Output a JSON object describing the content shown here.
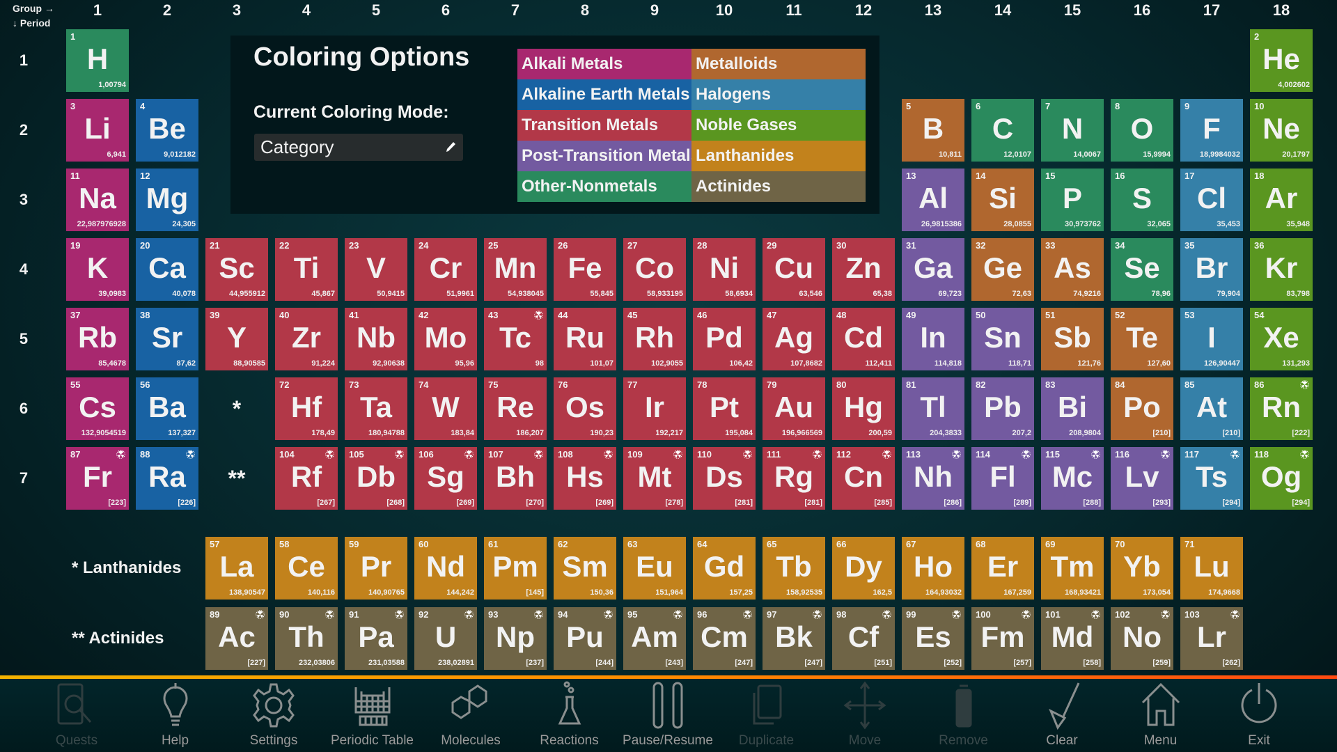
{
  "header": {
    "group_label": "Group →",
    "period_label": "↓ Period"
  },
  "groups": [
    "1",
    "2",
    "3",
    "4",
    "5",
    "6",
    "7",
    "8",
    "9",
    "10",
    "11",
    "12",
    "13",
    "14",
    "15",
    "16",
    "17",
    "18"
  ],
  "periods": [
    "1",
    "2",
    "3",
    "4",
    "5",
    "6",
    "7"
  ],
  "placeholders": {
    "lanthanide_marker": "*",
    "actinide_marker": "**"
  },
  "series_labels": {
    "lanthanides": "* Lanthanides",
    "actinides": "** Actinides"
  },
  "coloring_panel": {
    "title": "Coloring Options",
    "mode_label": "Current Coloring Mode:",
    "mode_value": "Category",
    "edit_icon": "pencil-icon",
    "legend": [
      {
        "key": "alkali",
        "label": "Alkali Metals",
        "color": "#a8286f"
      },
      {
        "key": "metalloid",
        "label": "Metalloids",
        "color": "#b0672f"
      },
      {
        "key": "alkaline",
        "label": "Alkaline Earth Metals",
        "color": "#1862a3"
      },
      {
        "key": "halogen",
        "label": "Halogens",
        "color": "#3580a8"
      },
      {
        "key": "transition",
        "label": "Transition Metals",
        "color": "#b23848"
      },
      {
        "key": "noble",
        "label": "Noble Gases",
        "color": "#5a9620"
      },
      {
        "key": "post",
        "label": "Post-Transition Metals",
        "color": "#735aa0"
      },
      {
        "key": "lanthanide",
        "label": "Lanthanides",
        "color": "#c2821c"
      },
      {
        "key": "nonmetal",
        "label": "Other-Nonmetals",
        "color": "#2a8a5d"
      },
      {
        "key": "actinide",
        "label": "Actinides",
        "color": "#6f6446"
      }
    ]
  },
  "radioactive_icon": "radiation-icon",
  "elements": [
    {
      "n": "1",
      "s": "H",
      "m": "1,00794",
      "c": "nonmetal",
      "g": 1,
      "p": 1
    },
    {
      "n": "2",
      "s": "He",
      "m": "4,002602",
      "c": "noble",
      "g": 18,
      "p": 1
    },
    {
      "n": "3",
      "s": "Li",
      "m": "6,941",
      "c": "alkali",
      "g": 1,
      "p": 2
    },
    {
      "n": "4",
      "s": "Be",
      "m": "9,012182",
      "c": "alkaline",
      "g": 2,
      "p": 2
    },
    {
      "n": "5",
      "s": "B",
      "m": "10,811",
      "c": "metalloid",
      "g": 13,
      "p": 2
    },
    {
      "n": "6",
      "s": "C",
      "m": "12,0107",
      "c": "nonmetal",
      "g": 14,
      "p": 2
    },
    {
      "n": "7",
      "s": "N",
      "m": "14,0067",
      "c": "nonmetal",
      "g": 15,
      "p": 2
    },
    {
      "n": "8",
      "s": "O",
      "m": "15,9994",
      "c": "nonmetal",
      "g": 16,
      "p": 2
    },
    {
      "n": "9",
      "s": "F",
      "m": "18,9984032",
      "c": "halogen",
      "g": 17,
      "p": 2
    },
    {
      "n": "10",
      "s": "Ne",
      "m": "20,1797",
      "c": "noble",
      "g": 18,
      "p": 2
    },
    {
      "n": "11",
      "s": "Na",
      "m": "22,987976928",
      "c": "alkali",
      "g": 1,
      "p": 3
    },
    {
      "n": "12",
      "s": "Mg",
      "m": "24,305",
      "c": "alkaline",
      "g": 2,
      "p": 3
    },
    {
      "n": "13",
      "s": "Al",
      "m": "26,9815386",
      "c": "post",
      "g": 13,
      "p": 3
    },
    {
      "n": "14",
      "s": "Si",
      "m": "28,0855",
      "c": "metalloid",
      "g": 14,
      "p": 3
    },
    {
      "n": "15",
      "s": "P",
      "m": "30,973762",
      "c": "nonmetal",
      "g": 15,
      "p": 3
    },
    {
      "n": "16",
      "s": "S",
      "m": "32,065",
      "c": "nonmetal",
      "g": 16,
      "p": 3
    },
    {
      "n": "17",
      "s": "Cl",
      "m": "35,453",
      "c": "halogen",
      "g": 17,
      "p": 3
    },
    {
      "n": "18",
      "s": "Ar",
      "m": "35,948",
      "c": "noble",
      "g": 18,
      "p": 3
    },
    {
      "n": "19",
      "s": "K",
      "m": "39,0983",
      "c": "alkali",
      "g": 1,
      "p": 4
    },
    {
      "n": "20",
      "s": "Ca",
      "m": "40,078",
      "c": "alkaline",
      "g": 2,
      "p": 4
    },
    {
      "n": "21",
      "s": "Sc",
      "m": "44,955912",
      "c": "transition",
      "g": 3,
      "p": 4
    },
    {
      "n": "22",
      "s": "Ti",
      "m": "45,867",
      "c": "transition",
      "g": 4,
      "p": 4
    },
    {
      "n": "23",
      "s": "V",
      "m": "50,9415",
      "c": "transition",
      "g": 5,
      "p": 4
    },
    {
      "n": "24",
      "s": "Cr",
      "m": "51,9961",
      "c": "transition",
      "g": 6,
      "p": 4
    },
    {
      "n": "25",
      "s": "Mn",
      "m": "54,938045",
      "c": "transition",
      "g": 7,
      "p": 4
    },
    {
      "n": "26",
      "s": "Fe",
      "m": "55,845",
      "c": "transition",
      "g": 8,
      "p": 4
    },
    {
      "n": "27",
      "s": "Co",
      "m": "58,933195",
      "c": "transition",
      "g": 9,
      "p": 4
    },
    {
      "n": "28",
      "s": "Ni",
      "m": "58,6934",
      "c": "transition",
      "g": 10,
      "p": 4
    },
    {
      "n": "29",
      "s": "Cu",
      "m": "63,546",
      "c": "transition",
      "g": 11,
      "p": 4
    },
    {
      "n": "30",
      "s": "Zn",
      "m": "65,38",
      "c": "transition",
      "g": 12,
      "p": 4
    },
    {
      "n": "31",
      "s": "Ga",
      "m": "69,723",
      "c": "post",
      "g": 13,
      "p": 4
    },
    {
      "n": "32",
      "s": "Ge",
      "m": "72,63",
      "c": "metalloid",
      "g": 14,
      "p": 4
    },
    {
      "n": "33",
      "s": "As",
      "m": "74,9216",
      "c": "metalloid",
      "g": 15,
      "p": 4
    },
    {
      "n": "34",
      "s": "Se",
      "m": "78,96",
      "c": "nonmetal",
      "g": 16,
      "p": 4
    },
    {
      "n": "35",
      "s": "Br",
      "m": "79,904",
      "c": "halogen",
      "g": 17,
      "p": 4
    },
    {
      "n": "36",
      "s": "Kr",
      "m": "83,798",
      "c": "noble",
      "g": 18,
      "p": 4
    },
    {
      "n": "37",
      "s": "Rb",
      "m": "85,4678",
      "c": "alkali",
      "g": 1,
      "p": 5
    },
    {
      "n": "38",
      "s": "Sr",
      "m": "87,62",
      "c": "alkaline",
      "g": 2,
      "p": 5
    },
    {
      "n": "39",
      "s": "Y",
      "m": "88,90585",
      "c": "transition",
      "g": 3,
      "p": 5
    },
    {
      "n": "40",
      "s": "Zr",
      "m": "91,224",
      "c": "transition",
      "g": 4,
      "p": 5
    },
    {
      "n": "41",
      "s": "Nb",
      "m": "92,90638",
      "c": "transition",
      "g": 5,
      "p": 5
    },
    {
      "n": "42",
      "s": "Mo",
      "m": "95,96",
      "c": "transition",
      "g": 6,
      "p": 5
    },
    {
      "n": "43",
      "s": "Tc",
      "m": "98",
      "c": "transition",
      "g": 7,
      "p": 5,
      "r": true
    },
    {
      "n": "44",
      "s": "Ru",
      "m": "101,07",
      "c": "transition",
      "g": 8,
      "p": 5
    },
    {
      "n": "45",
      "s": "Rh",
      "m": "102,9055",
      "c": "transition",
      "g": 9,
      "p": 5
    },
    {
      "n": "46",
      "s": "Pd",
      "m": "106,42",
      "c": "transition",
      "g": 10,
      "p": 5
    },
    {
      "n": "47",
      "s": "Ag",
      "m": "107,8682",
      "c": "transition",
      "g": 11,
      "p": 5
    },
    {
      "n": "48",
      "s": "Cd",
      "m": "112,411",
      "c": "transition",
      "g": 12,
      "p": 5
    },
    {
      "n": "49",
      "s": "In",
      "m": "114,818",
      "c": "post",
      "g": 13,
      "p": 5
    },
    {
      "n": "50",
      "s": "Sn",
      "m": "118,71",
      "c": "post",
      "g": 14,
      "p": 5
    },
    {
      "n": "51",
      "s": "Sb",
      "m": "121,76",
      "c": "metalloid",
      "g": 15,
      "p": 5
    },
    {
      "n": "52",
      "s": "Te",
      "m": "127,60",
      "c": "metalloid",
      "g": 16,
      "p": 5
    },
    {
      "n": "53",
      "s": "I",
      "m": "126,90447",
      "c": "halogen",
      "g": 17,
      "p": 5
    },
    {
      "n": "54",
      "s": "Xe",
      "m": "131,293",
      "c": "noble",
      "g": 18,
      "p": 5
    },
    {
      "n": "55",
      "s": "Cs",
      "m": "132,9054519",
      "c": "alkali",
      "g": 1,
      "p": 6
    },
    {
      "n": "56",
      "s": "Ba",
      "m": "137,327",
      "c": "alkaline",
      "g": 2,
      "p": 6
    },
    {
      "n": "72",
      "s": "Hf",
      "m": "178,49",
      "c": "transition",
      "g": 4,
      "p": 6
    },
    {
      "n": "73",
      "s": "Ta",
      "m": "180,94788",
      "c": "transition",
      "g": 5,
      "p": 6
    },
    {
      "n": "74",
      "s": "W",
      "m": "183,84",
      "c": "transition",
      "g": 6,
      "p": 6
    },
    {
      "n": "75",
      "s": "Re",
      "m": "186,207",
      "c": "transition",
      "g": 7,
      "p": 6
    },
    {
      "n": "76",
      "s": "Os",
      "m": "190,23",
      "c": "transition",
      "g": 8,
      "p": 6
    },
    {
      "n": "77",
      "s": "Ir",
      "m": "192,217",
      "c": "transition",
      "g": 9,
      "p": 6
    },
    {
      "n": "78",
      "s": "Pt",
      "m": "195,084",
      "c": "transition",
      "g": 10,
      "p": 6
    },
    {
      "n": "79",
      "s": "Au",
      "m": "196,966569",
      "c": "transition",
      "g": 11,
      "p": 6
    },
    {
      "n": "80",
      "s": "Hg",
      "m": "200,59",
      "c": "transition",
      "g": 12,
      "p": 6
    },
    {
      "n": "81",
      "s": "Tl",
      "m": "204,3833",
      "c": "post",
      "g": 13,
      "p": 6
    },
    {
      "n": "82",
      "s": "Pb",
      "m": "207,2",
      "c": "post",
      "g": 14,
      "p": 6
    },
    {
      "n": "83",
      "s": "Bi",
      "m": "208,9804",
      "c": "post",
      "g": 15,
      "p": 6
    },
    {
      "n": "84",
      "s": "Po",
      "m": "[210]",
      "c": "metalloid",
      "g": 16,
      "p": 6
    },
    {
      "n": "85",
      "s": "At",
      "m": "[210]",
      "c": "halogen",
      "g": 17,
      "p": 6
    },
    {
      "n": "86",
      "s": "Rn",
      "m": "[222]",
      "c": "noble",
      "g": 18,
      "p": 6,
      "r": true
    },
    {
      "n": "87",
      "s": "Fr",
      "m": "[223]",
      "c": "alkali",
      "g": 1,
      "p": 7,
      "r": true
    },
    {
      "n": "88",
      "s": "Ra",
      "m": "[226]",
      "c": "alkaline",
      "g": 2,
      "p": 7,
      "r": true
    },
    {
      "n": "104",
      "s": "Rf",
      "m": "[267]",
      "c": "transition",
      "g": 4,
      "p": 7,
      "r": true
    },
    {
      "n": "105",
      "s": "Db",
      "m": "[268]",
      "c": "transition",
      "g": 5,
      "p": 7,
      "r": true
    },
    {
      "n": "106",
      "s": "Sg",
      "m": "[269]",
      "c": "transition",
      "g": 6,
      "p": 7,
      "r": true
    },
    {
      "n": "107",
      "s": "Bh",
      "m": "[270]",
      "c": "transition",
      "g": 7,
      "p": 7,
      "r": true
    },
    {
      "n": "108",
      "s": "Hs",
      "m": "[269]",
      "c": "transition",
      "g": 8,
      "p": 7,
      "r": true
    },
    {
      "n": "109",
      "s": "Mt",
      "m": "[278]",
      "c": "transition",
      "g": 9,
      "p": 7,
      "r": true
    },
    {
      "n": "110",
      "s": "Ds",
      "m": "[281]",
      "c": "transition",
      "g": 10,
      "p": 7,
      "r": true
    },
    {
      "n": "111",
      "s": "Rg",
      "m": "[281]",
      "c": "transition",
      "g": 11,
      "p": 7,
      "r": true
    },
    {
      "n": "112",
      "s": "Cn",
      "m": "[285]",
      "c": "transition",
      "g": 12,
      "p": 7,
      "r": true
    },
    {
      "n": "113",
      "s": "Nh",
      "m": "[286]",
      "c": "post",
      "g": 13,
      "p": 7,
      "r": true
    },
    {
      "n": "114",
      "s": "Fl",
      "m": "[289]",
      "c": "post",
      "g": 14,
      "p": 7,
      "r": true
    },
    {
      "n": "115",
      "s": "Mc",
      "m": "[288]",
      "c": "post",
      "g": 15,
      "p": 7,
      "r": true
    },
    {
      "n": "116",
      "s": "Lv",
      "m": "[293]",
      "c": "post",
      "g": 16,
      "p": 7,
      "r": true
    },
    {
      "n": "117",
      "s": "Ts",
      "m": "[294]",
      "c": "halogen",
      "g": 17,
      "p": 7,
      "r": true
    },
    {
      "n": "118",
      "s": "Og",
      "m": "[294]",
      "c": "noble",
      "g": 18,
      "p": 7,
      "r": true
    }
  ],
  "lanthanides": [
    {
      "n": "57",
      "s": "La",
      "m": "138,90547"
    },
    {
      "n": "58",
      "s": "Ce",
      "m": "140,116"
    },
    {
      "n": "59",
      "s": "Pr",
      "m": "140,90765"
    },
    {
      "n": "60",
      "s": "Nd",
      "m": "144,242"
    },
    {
      "n": "61",
      "s": "Pm",
      "m": "[145]"
    },
    {
      "n": "62",
      "s": "Sm",
      "m": "150,36"
    },
    {
      "n": "63",
      "s": "Eu",
      "m": "151,964"
    },
    {
      "n": "64",
      "s": "Gd",
      "m": "157,25"
    },
    {
      "n": "65",
      "s": "Tb",
      "m": "158,92535"
    },
    {
      "n": "66",
      "s": "Dy",
      "m": "162,5"
    },
    {
      "n": "67",
      "s": "Ho",
      "m": "164,93032"
    },
    {
      "n": "68",
      "s": "Er",
      "m": "167,259"
    },
    {
      "n": "69",
      "s": "Tm",
      "m": "168,93421"
    },
    {
      "n": "70",
      "s": "Yb",
      "m": "173,054"
    },
    {
      "n": "71",
      "s": "Lu",
      "m": "174,9668"
    }
  ],
  "actinides": [
    {
      "n": "89",
      "s": "Ac",
      "m": "[227]",
      "r": true
    },
    {
      "n": "90",
      "s": "Th",
      "m": "232,03806",
      "r": true
    },
    {
      "n": "91",
      "s": "Pa",
      "m": "231,03588",
      "r": true
    },
    {
      "n": "92",
      "s": "U",
      "m": "238,02891",
      "r": true
    },
    {
      "n": "93",
      "s": "Np",
      "m": "[237]",
      "r": true
    },
    {
      "n": "94",
      "s": "Pu",
      "m": "[244]",
      "r": true
    },
    {
      "n": "95",
      "s": "Am",
      "m": "[243]",
      "r": true
    },
    {
      "n": "96",
      "s": "Cm",
      "m": "[247]",
      "r": true
    },
    {
      "n": "97",
      "s": "Bk",
      "m": "[247]",
      "r": true
    },
    {
      "n": "98",
      "s": "Cf",
      "m": "[251]",
      "r": true
    },
    {
      "n": "99",
      "s": "Es",
      "m": "[252]",
      "r": true
    },
    {
      "n": "100",
      "s": "Fm",
      "m": "[257]",
      "r": true
    },
    {
      "n": "101",
      "s": "Md",
      "m": "[258]",
      "r": true
    },
    {
      "n": "102",
      "s": "No",
      "m": "[259]",
      "r": true
    },
    {
      "n": "103",
      "s": "Lr",
      "m": "[262]",
      "r": true
    }
  ],
  "toolbar": [
    {
      "label": "Quests",
      "icon": "quest-search-icon",
      "enabled": false
    },
    {
      "label": "Help",
      "icon": "lightbulb-icon",
      "enabled": true
    },
    {
      "label": "Settings",
      "icon": "gear-icon",
      "enabled": true
    },
    {
      "label": "Periodic Table",
      "icon": "periodic-table-icon",
      "enabled": true
    },
    {
      "label": "Molecules",
      "icon": "molecule-icon",
      "enabled": true
    },
    {
      "label": "Reactions",
      "icon": "flask-icon",
      "enabled": true
    },
    {
      "label": "Pause/Resume",
      "icon": "pause-icon",
      "enabled": true
    },
    {
      "label": "Duplicate",
      "icon": "duplicate-icon",
      "enabled": false
    },
    {
      "label": "Move",
      "icon": "move-arrows-icon",
      "enabled": false
    },
    {
      "label": "Remove",
      "icon": "trash-icon",
      "enabled": false
    },
    {
      "label": "Clear",
      "icon": "broom-icon",
      "enabled": true
    },
    {
      "label": "Menu",
      "icon": "home-icon",
      "enabled": true
    },
    {
      "label": "Exit",
      "icon": "power-icon",
      "enabled": true
    }
  ]
}
